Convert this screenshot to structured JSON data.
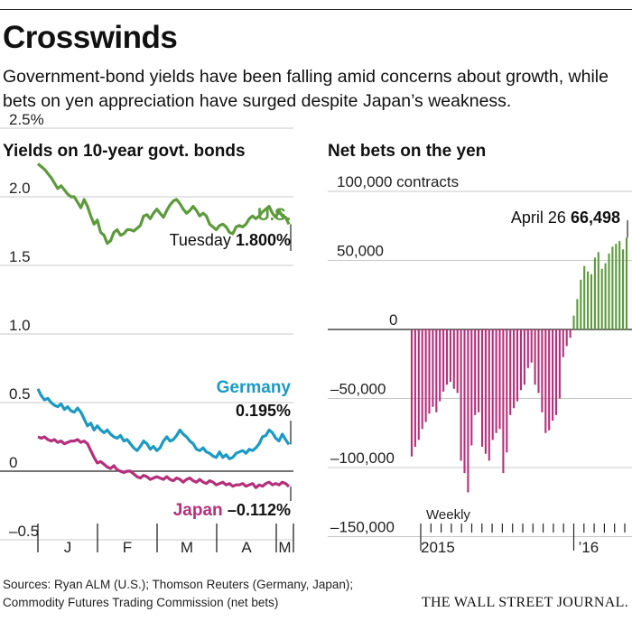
{
  "headline": "Crosswinds",
  "dek": "Government-bond yields have been falling amid concerns about growth, while bets on yen appreciation have surged despite Japan’s weakness.",
  "colors": {
    "us": "#5d9a3c",
    "germany": "#1b9ac4",
    "japan": "#b5307a",
    "bets_pos": "#5d9a3c",
    "bets_neg": "#b5307a"
  },
  "chart_data": [
    {
      "type": "line",
      "title": "Yields on 10-year govt. bonds",
      "ylim": [
        -0.6,
        2.6
      ],
      "yticks": [
        {
          "v": 2.5,
          "label": "2.5%"
        },
        {
          "v": 2.0,
          "label": "2.0"
        },
        {
          "v": 1.5,
          "label": "1.5"
        },
        {
          "v": 1.0,
          "label": "1.0"
        },
        {
          "v": 0.5,
          "label": "0.5"
        },
        {
          "v": 0.0,
          "label": "0"
        },
        {
          "v": -0.5,
          "label": "–0.5"
        }
      ],
      "xticks": [
        "J",
        "F",
        "M",
        "A",
        "M"
      ],
      "series": [
        {
          "name": "U.S.",
          "annotation_label": "Tuesday",
          "annotation_value": "1.800%",
          "values": [
            2.24,
            2.22,
            2.2,
            2.17,
            2.14,
            2.1,
            2.06,
            2.08,
            2.05,
            2.02,
            2.0,
            2.0,
            1.96,
            1.92,
            1.98,
            1.93,
            1.86,
            1.8,
            1.83,
            1.74,
            1.72,
            1.66,
            1.68,
            1.74,
            1.76,
            1.72,
            1.73,
            1.76,
            1.76,
            1.75,
            1.77,
            1.79,
            1.86,
            1.87,
            1.84,
            1.88,
            1.91,
            1.88,
            1.85,
            1.9,
            1.94,
            1.97,
            1.98,
            1.95,
            1.91,
            1.88,
            1.9,
            1.93,
            1.9,
            1.86,
            1.88,
            1.86,
            1.8,
            1.78,
            1.76,
            1.79,
            1.8,
            1.78,
            1.74,
            1.73,
            1.78,
            1.79,
            1.78,
            1.8,
            1.84,
            1.86,
            1.84,
            1.86,
            1.89,
            1.91,
            1.93,
            1.88,
            1.85,
            1.9,
            1.86,
            1.85,
            1.8
          ]
        },
        {
          "name": "Germany",
          "annotation_label": "",
          "annotation_value": "0.195%",
          "values": [
            0.6,
            0.55,
            0.52,
            0.53,
            0.5,
            0.48,
            0.47,
            0.49,
            0.45,
            0.47,
            0.44,
            0.43,
            0.46,
            0.43,
            0.38,
            0.33,
            0.35,
            0.3,
            0.33,
            0.3,
            0.28,
            0.3,
            0.27,
            0.25,
            0.24,
            0.26,
            0.22,
            0.23,
            0.2,
            0.17,
            0.15,
            0.18,
            0.22,
            0.2,
            0.16,
            0.18,
            0.15,
            0.17,
            0.22,
            0.25,
            0.22,
            0.23,
            0.26,
            0.3,
            0.27,
            0.25,
            0.22,
            0.2,
            0.16,
            0.15,
            0.17,
            0.14,
            0.13,
            0.11,
            0.1,
            0.14,
            0.1,
            0.12,
            0.09,
            0.1,
            0.13,
            0.14,
            0.15,
            0.13,
            0.16,
            0.15,
            0.17,
            0.2,
            0.25,
            0.26,
            0.3,
            0.28,
            0.24,
            0.22,
            0.27,
            0.23,
            0.195
          ]
        },
        {
          "name": "Japan",
          "annotation_label": "",
          "annotation_value": "–0.112%",
          "values": [
            0.25,
            0.24,
            0.25,
            0.23,
            0.22,
            0.23,
            0.21,
            0.22,
            0.2,
            0.21,
            0.22,
            0.22,
            0.23,
            0.21,
            0.22,
            0.2,
            0.15,
            0.1,
            0.06,
            0.07,
            0.05,
            0.03,
            0.02,
            0.04,
            0.01,
            0.0,
            -0.01,
            0.0,
            0.0,
            -0.02,
            -0.04,
            -0.05,
            -0.03,
            -0.04,
            -0.06,
            -0.05,
            -0.04,
            -0.05,
            -0.06,
            -0.04,
            -0.06,
            -0.07,
            -0.05,
            -0.06,
            -0.08,
            -0.06,
            -0.05,
            -0.07,
            -0.08,
            -0.06,
            -0.08,
            -0.09,
            -0.07,
            -0.08,
            -0.1,
            -0.09,
            -0.08,
            -0.1,
            -0.09,
            -0.11,
            -0.1,
            -0.1,
            -0.09,
            -0.11,
            -0.1,
            -0.09,
            -0.12,
            -0.1,
            -0.11,
            -0.09,
            -0.08,
            -0.1,
            -0.09,
            -0.1,
            -0.08,
            -0.09,
            -0.112
          ]
        }
      ]
    },
    {
      "type": "bar",
      "title": "Net bets on the yen",
      "ylim": [
        -155000,
        108000
      ],
      "yticks": [
        {
          "v": 100000,
          "label": "100,000 contracts"
        },
        {
          "v": 50000,
          "label": "50,000"
        },
        {
          "v": 0,
          "label": "0"
        },
        {
          "v": -50000,
          "label": "–50,000"
        },
        {
          "v": -100000,
          "label": "–100,000"
        },
        {
          "v": -150000,
          "label": "–150,000"
        }
      ],
      "frequency_label": "Weekly",
      "xticks": [
        "2015",
        "’16"
      ],
      "annotation_label": "April 26",
      "annotation_value": "66,498",
      "values": [
        -92000,
        -85000,
        -80000,
        -72000,
        -67000,
        -61000,
        -56000,
        -60000,
        -52000,
        -45000,
        -40000,
        -38000,
        -43000,
        -46000,
        -95000,
        -104000,
        -118000,
        -84000,
        -62000,
        -60000,
        -85000,
        -90000,
        -95000,
        -80000,
        -75000,
        -72000,
        -104000,
        -89000,
        -62000,
        -57000,
        -52000,
        -44000,
        -40000,
        -28000,
        -24000,
        -40000,
        -46000,
        -60000,
        -75000,
        -73000,
        -66000,
        -62000,
        -50000,
        -20000,
        -12000,
        -6000,
        10000,
        22000,
        36000,
        46000,
        42000,
        40000,
        52000,
        56000,
        44000,
        48000,
        55000,
        60000,
        62000,
        64000,
        58000,
        66498
      ]
    }
  ],
  "sources_line1": "Sources: Ryan ALM (U.S.); Thomson Reuters (Germany, Japan);",
  "sources_line2": "Commodity Futures Trading Commission (net bets)",
  "brand": "THE WALL STREET JOURNAL."
}
